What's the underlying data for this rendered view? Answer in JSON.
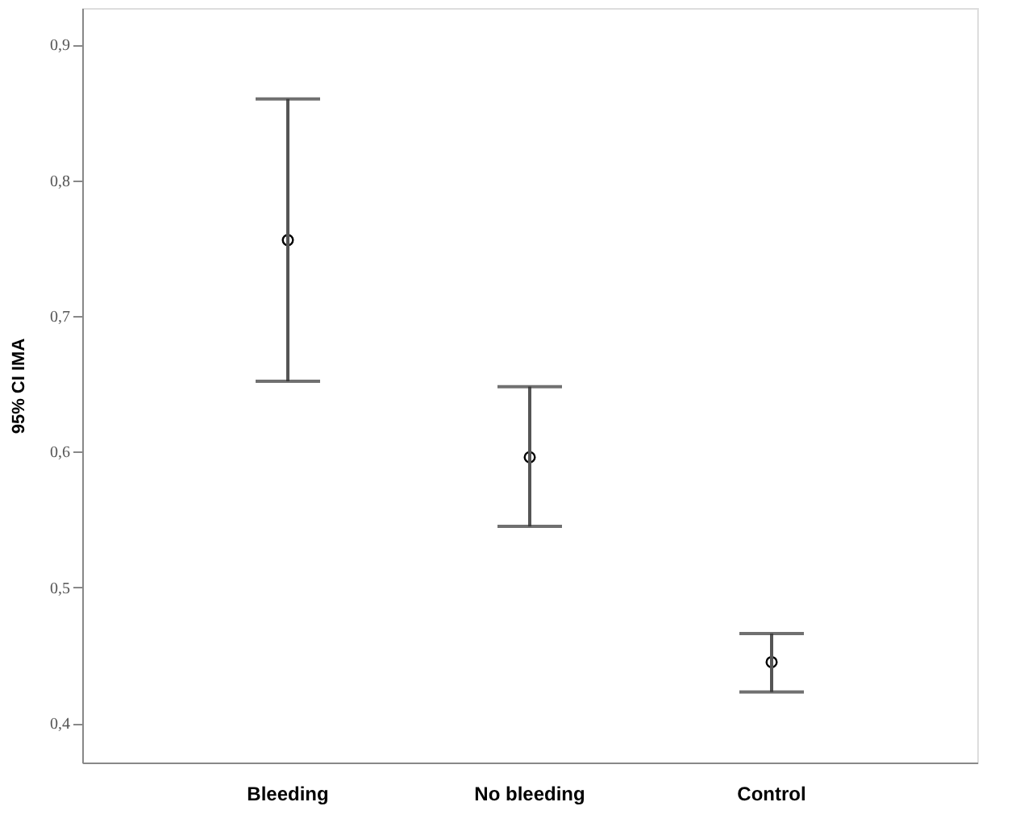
{
  "chart_data": {
    "type": "scatter",
    "ylabel": "95% CI IMA",
    "categories": [
      "Bleeding",
      "No bleeding",
      "Control"
    ],
    "values": [
      0.756,
      0.596,
      0.445
    ],
    "errors": [
      [
        0.652,
        0.86
      ],
      [
        0.545,
        0.648
      ],
      [
        0.423,
        0.466
      ]
    ],
    "color": "#000000",
    "marker": "circle",
    "grid": false,
    "ylim": [
      0.371,
      0.927
    ],
    "yticks": [
      {
        "value": 0.4,
        "label": "0,4"
      },
      {
        "value": 0.5,
        "label": "0,5"
      },
      {
        "value": 0.6,
        "label": "0,6"
      },
      {
        "value": 0.7,
        "label": "0,7"
      },
      {
        "value": 0.8,
        "label": "0,8"
      },
      {
        "value": 0.9,
        "label": "0,9"
      }
    ]
  }
}
